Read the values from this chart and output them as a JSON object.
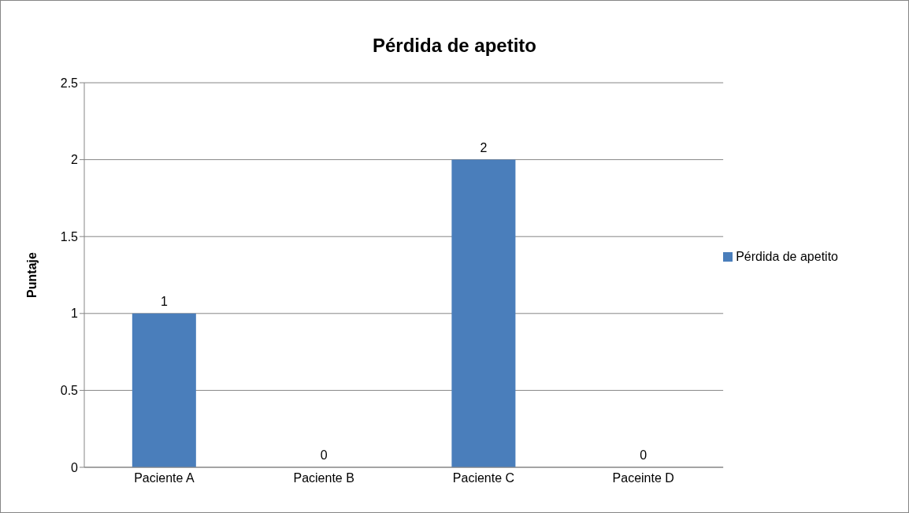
{
  "chart_data": {
    "type": "bar",
    "title": "Pérdida de apetito",
    "ylabel": "Puntaje",
    "categories": [
      "Paciente A",
      "Paciente B",
      "Paciente C",
      "Paceinte D"
    ],
    "series": [
      {
        "name": "Pérdida de apetito",
        "color": "#4a7ebb",
        "values": [
          1,
          0,
          2,
          0
        ]
      }
    ],
    "ylim": [
      0,
      2.5
    ],
    "yticks": [
      0,
      0.5,
      1,
      1.5,
      2,
      2.5
    ],
    "grid": "y",
    "legend": "right",
    "data_labels": true
  }
}
